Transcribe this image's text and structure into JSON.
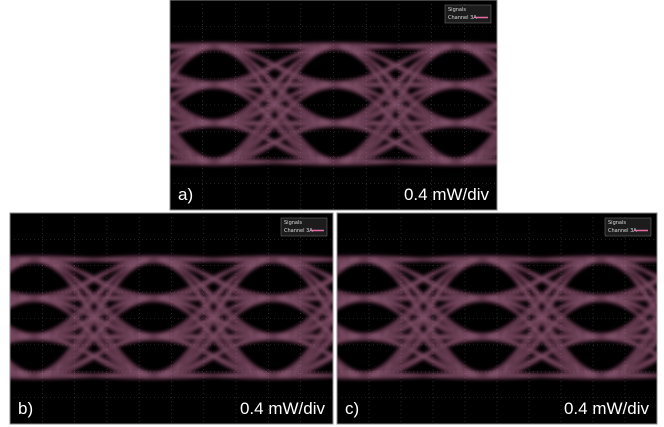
{
  "panels": [
    {
      "label": "a)",
      "scale": "0.4 mW/div",
      "legend_title": "Signals",
      "legend_entry": "Channel 3A"
    },
    {
      "label": "b)",
      "scale": "0.4 mW/div",
      "legend_title": "Signals",
      "legend_entry": "Channel 3A"
    },
    {
      "label": "c)",
      "scale": "0.4 mW/div",
      "legend_title": "Signals",
      "legend_entry": "Channel 3A"
    }
  ]
}
